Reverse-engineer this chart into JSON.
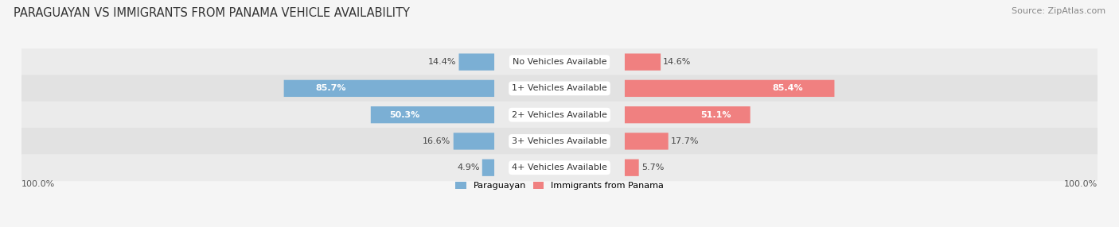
{
  "title": "PARAGUAYAN VS IMMIGRANTS FROM PANAMA VEHICLE AVAILABILITY",
  "source": "Source: ZipAtlas.com",
  "categories": [
    "No Vehicles Available",
    "1+ Vehicles Available",
    "2+ Vehicles Available",
    "3+ Vehicles Available",
    "4+ Vehicles Available"
  ],
  "paraguayan_values": [
    14.4,
    85.7,
    50.3,
    16.6,
    4.9
  ],
  "panama_values": [
    14.6,
    85.4,
    51.1,
    17.7,
    5.7
  ],
  "paraguayan_color": "#7bafd4",
  "panama_color": "#f08080",
  "panama_color_light": "#f4a0b0",
  "max_value": 100.0,
  "bottom_left_label": "100.0%",
  "bottom_right_label": "100.0%",
  "legend_paraguayan": "Paraguayan",
  "legend_panama": "Immigrants from Panama",
  "title_fontsize": 10.5,
  "source_fontsize": 8,
  "label_fontsize": 8,
  "category_fontsize": 8,
  "bg_color": "#f5f5f5",
  "row_bg_color": "#ebebeb",
  "row_alt_bg_color": "#e2e2e2"
}
